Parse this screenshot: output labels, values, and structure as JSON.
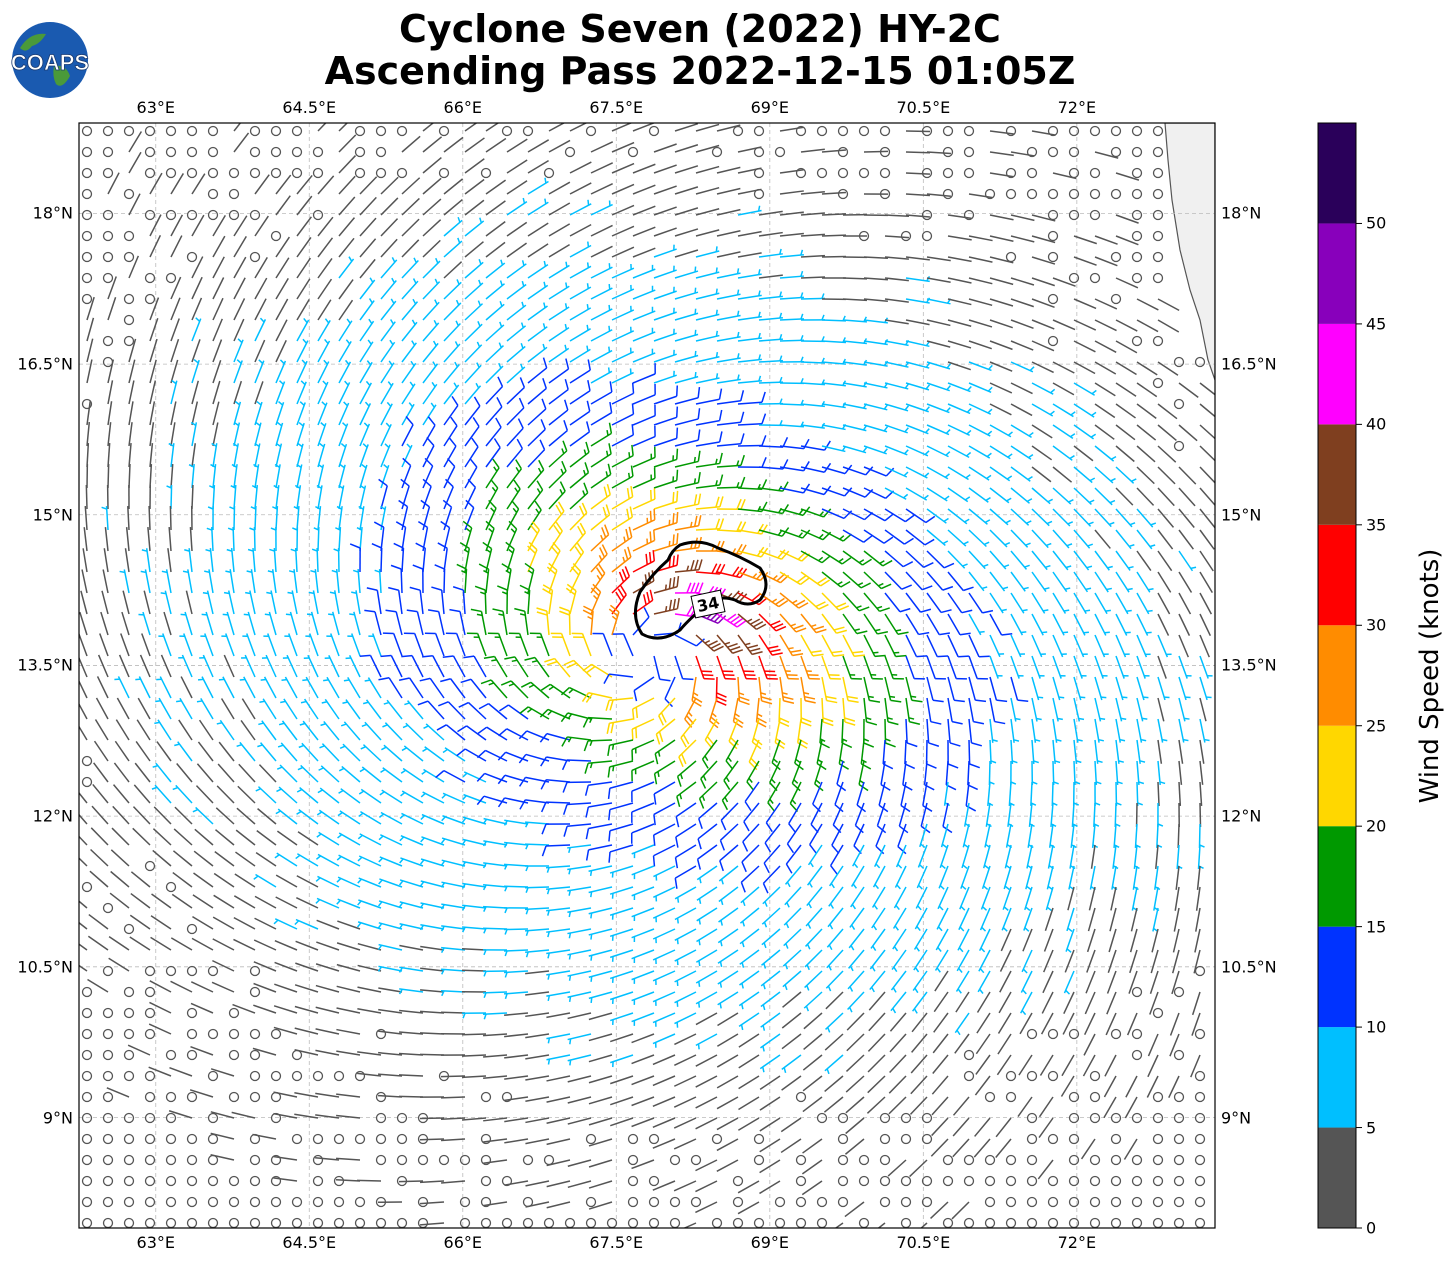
{
  "title": {
    "line1": "Cyclone Seven (2022) HY-2C",
    "line2": "Ascending Pass 2022-12-15 01:05Z"
  },
  "logo": {
    "text": "COAPS",
    "icon": "globe-logo-icon"
  },
  "map": {
    "lon_ticks": [
      "63°E",
      "64.5°E",
      "66°E",
      "67.5°E",
      "69°E",
      "70.5°E",
      "72°E"
    ],
    "lat_ticks": [
      "18°N",
      "16.5°N",
      "15°N",
      "13.5°N",
      "12°N",
      "10.5°N",
      "9°N"
    ],
    "lon_range": [
      62.25,
      73.35
    ],
    "lat_range": [
      7.9,
      18.9
    ],
    "cyclone_center": {
      "lon": 67.8,
      "lat": 13.6
    },
    "contour_label": "34",
    "land": "west coast of India along right edge",
    "gridlines": true
  },
  "colorbar": {
    "label": "Wind Speed (knots)",
    "ticks": [
      "0",
      "5",
      "10",
      "15",
      "20",
      "25",
      "30",
      "35",
      "40",
      "45",
      "50"
    ],
    "bins": [
      {
        "from": 0,
        "to": 5,
        "color": "#555555"
      },
      {
        "from": 5,
        "to": 10,
        "color": "#00bfff"
      },
      {
        "from": 10,
        "to": 15,
        "color": "#0033ff"
      },
      {
        "from": 15,
        "to": 20,
        "color": "#009900"
      },
      {
        "from": 20,
        "to": 25,
        "color": "#ffd700"
      },
      {
        "from": 25,
        "to": 30,
        "color": "#ff8c00"
      },
      {
        "from": 30,
        "to": 35,
        "color": "#ff0000"
      },
      {
        "from": 35,
        "to": 40,
        "color": "#7f3f1f"
      },
      {
        "from": 40,
        "to": 45,
        "color": "#ff00ff"
      },
      {
        "from": 45,
        "to": 50,
        "color": "#8800bb"
      },
      {
        "from": 50,
        "to": 55,
        "color": "#2a005a"
      }
    ]
  }
}
